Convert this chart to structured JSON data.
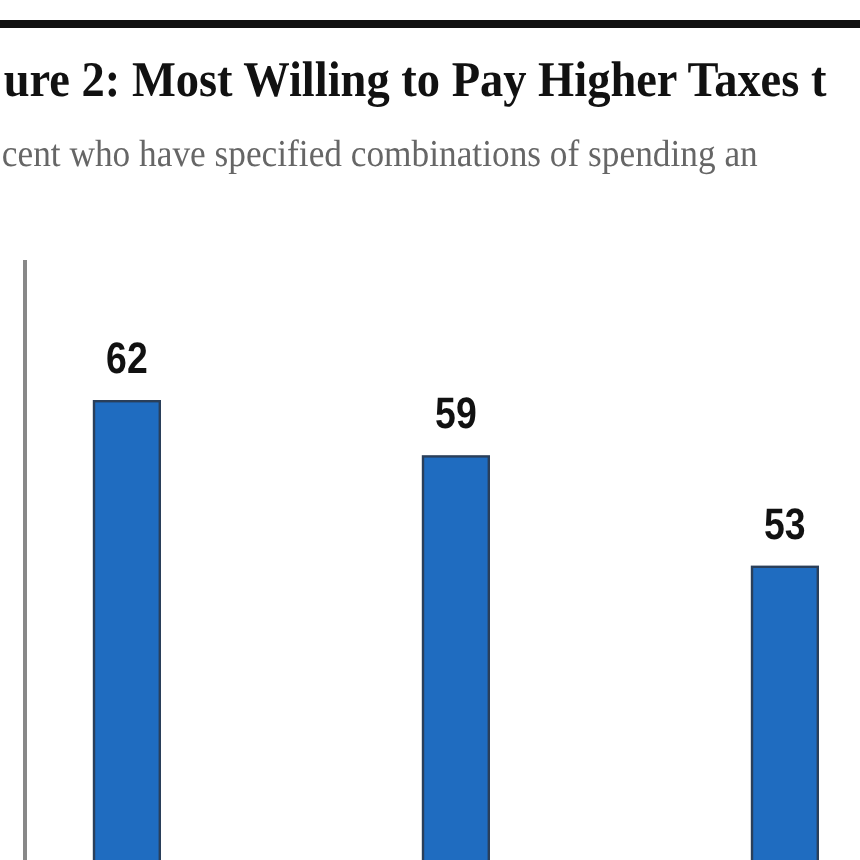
{
  "chart_data": {
    "type": "bar",
    "title": "ure 2: Most Willing to Pay Higher Taxes t",
    "subtitle": "cent who have specified combinations of spending an",
    "categories": [
      null,
      null,
      null
    ],
    "values": [
      62,
      59,
      53
    ],
    "color": "#1f6cc0",
    "data_labels": true
  }
}
